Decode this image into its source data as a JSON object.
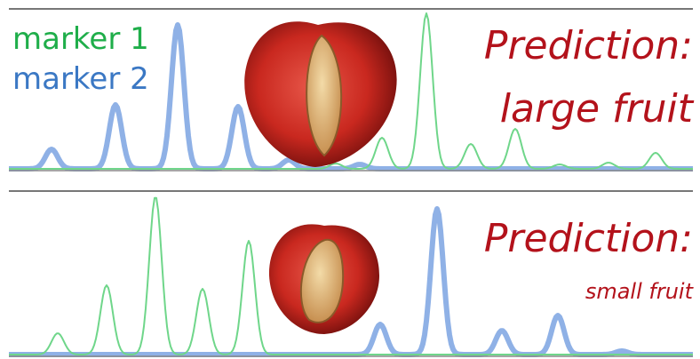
{
  "legend": {
    "marker_1": "marker 1",
    "marker_2": "marker 2"
  },
  "top_panel": {
    "prediction": "Prediction:",
    "result": "large fruit"
  },
  "bottom_panel": {
    "prediction": "Prediction:",
    "result": "small fruit"
  }
}
